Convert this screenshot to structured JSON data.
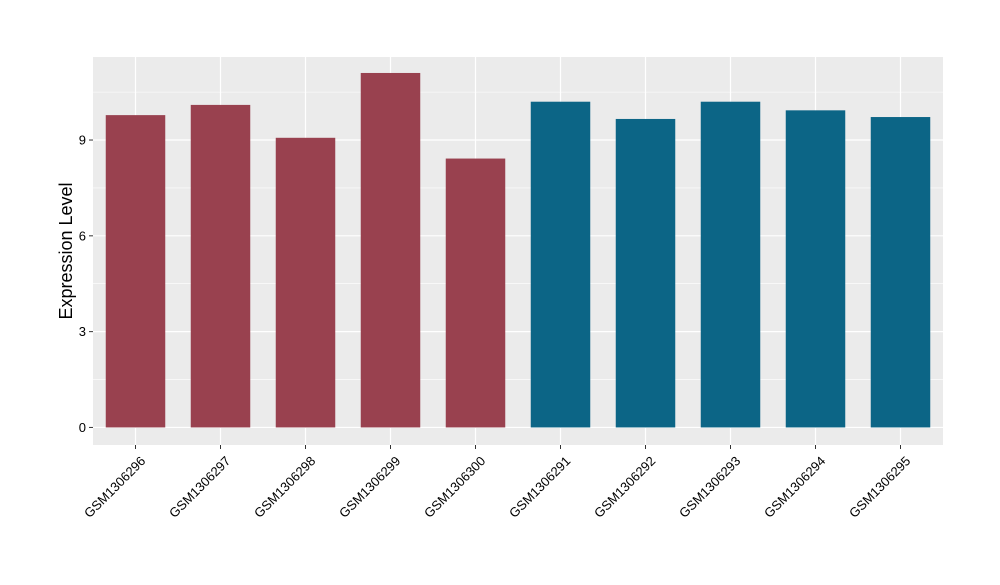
{
  "chart_data": {
    "type": "bar",
    "ylabel": "Expression Level",
    "xlabel": "",
    "categories": [
      "GSM1306296",
      "GSM1306297",
      "GSM1306298",
      "GSM1306299",
      "GSM1306300",
      "GSM1306291",
      "GSM1306292",
      "GSM1306293",
      "GSM1306294",
      "GSM1306295"
    ],
    "values": [
      9.78,
      10.1,
      9.07,
      11.1,
      8.42,
      10.2,
      9.66,
      10.2,
      9.93,
      9.72
    ],
    "bar_colors": [
      "#99414f",
      "#99414f",
      "#99414f",
      "#99414f",
      "#99414f",
      "#0c6586",
      "#0c6586",
      "#0c6586",
      "#0c6586",
      "#0c6586"
    ],
    "ylim": [
      -0.55,
      11.6
    ],
    "yticks": [
      0,
      3,
      6,
      9
    ],
    "grid": true,
    "legend": "none",
    "panel_background": "#ebebeb"
  }
}
